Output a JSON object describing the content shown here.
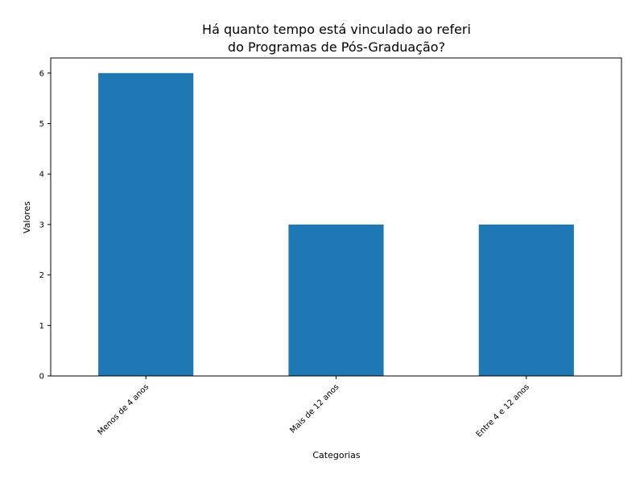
{
  "chart_data": {
    "type": "bar",
    "title_lines": [
      "Há quanto tempo está vinculado ao referi",
      "do Programas de Pós-Graduação?"
    ],
    "xlabel": "Categorias",
    "ylabel": "Valores",
    "categories": [
      "Menos de 4 anos",
      "Mais de 12 anos",
      "Entre 4 e 12 anos"
    ],
    "values": [
      6,
      3,
      3
    ],
    "ylim": [
      0,
      6.3
    ],
    "yticks": [
      0,
      1,
      2,
      3,
      4,
      5,
      6
    ],
    "grid": false,
    "legend": "none",
    "bar_color": "#1f77b4"
  }
}
